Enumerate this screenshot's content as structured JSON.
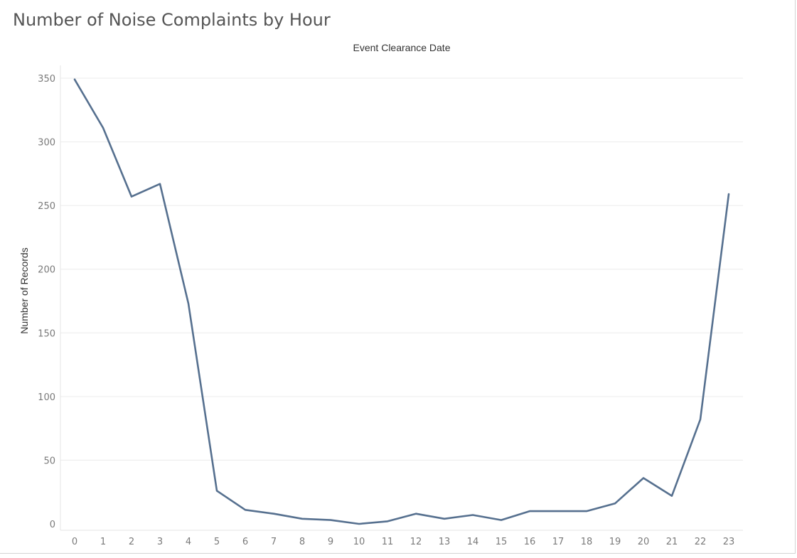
{
  "chart_data": {
    "type": "line",
    "title": "Number of Noise Complaints by Hour",
    "header_label": "Event Clearance Date",
    "xlabel": "",
    "ylabel": "Number of Records",
    "x": [
      0,
      1,
      2,
      3,
      4,
      5,
      6,
      7,
      8,
      9,
      10,
      11,
      12,
      13,
      14,
      15,
      16,
      17,
      18,
      19,
      20,
      21,
      22,
      23
    ],
    "series": [
      {
        "values": [
          349,
          311,
          257,
          267,
          173,
          26,
          11,
          8,
          4,
          3,
          0,
          2,
          8,
          4,
          7,
          3,
          10,
          10,
          10,
          16,
          36,
          22,
          82,
          259
        ]
      }
    ],
    "yticks": [
      0,
      50,
      100,
      150,
      200,
      250,
      300,
      350
    ],
    "ylim": [
      0,
      350
    ],
    "xlim": [
      0,
      23
    ],
    "grid": true,
    "legend": "none",
    "colors": {
      "line": "#56708f"
    }
  }
}
